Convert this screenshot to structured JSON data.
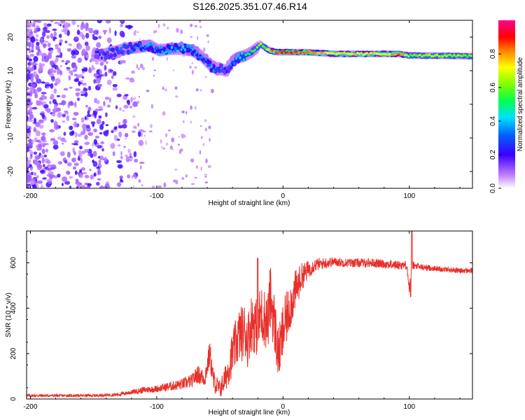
{
  "title": "S126.2025.351.07.46.R14",
  "chart_data": [
    {
      "type": "heatmap",
      "xlabel": "Height of straight line (km)",
      "ylabel": "Frequency (Hz)",
      "xlim": [
        -203,
        150
      ],
      "ylim": [
        -25,
        25
      ],
      "xticks": [
        -200,
        -100,
        0,
        100
      ],
      "yticks": [
        -20,
        -10,
        0,
        10,
        20
      ],
      "colorbar": {
        "label": "Normalized spectral amplitude",
        "range": [
          0,
          1
        ],
        "ticks": [
          "0.0",
          "0.2",
          "0.4",
          "0.6",
          "0.8"
        ]
      },
      "ridge_x": [
        -145,
        -135,
        -125,
        -115,
        -105,
        -98,
        -90,
        -80,
        -72,
        -65,
        -60,
        -55,
        -50,
        -45,
        -40,
        -35,
        -30,
        -25,
        -20,
        -18,
        -15,
        -10,
        -5,
        0,
        10,
        20,
        40,
        60,
        80,
        92,
        100,
        120,
        150
      ],
      "ridge_freq": [
        14.5,
        15.5,
        16.5,
        17.0,
        17.5,
        16.0,
        16.5,
        16.5,
        16.0,
        14.5,
        12.5,
        11.0,
        10.5,
        10.0,
        13.0,
        14.0,
        14.5,
        15.5,
        17.0,
        18.0,
        17.0,
        16.0,
        15.5,
        15.5,
        15.5,
        15.5,
        15.0,
        15.0,
        15.0,
        15.0,
        14.5,
        14.5,
        14.3
      ],
      "ridge_amplitude": [
        0.25,
        0.3,
        0.3,
        0.35,
        0.35,
        0.4,
        0.4,
        0.4,
        0.4,
        0.35,
        0.35,
        0.35,
        0.3,
        0.25,
        0.35,
        0.45,
        0.5,
        0.55,
        0.6,
        0.65,
        0.6,
        0.8,
        0.85,
        0.9,
        0.85,
        0.85,
        0.7,
        0.75,
        0.7,
        0.85,
        0.6,
        0.65,
        0.6
      ]
    },
    {
      "type": "line",
      "xlabel": "Height of straight line (km)",
      "ylabel": "SNR (10 * v/v)",
      "xlim": [
        -203,
        150
      ],
      "ylim": [
        0,
        740
      ],
      "xticks": [
        -200,
        -100,
        0,
        100
      ],
      "yticks": [
        0,
        200,
        400,
        600
      ],
      "color": "#e8302a",
      "series": [
        {
          "name": "SNR",
          "x": [
            -203,
            -180,
            -150,
            -130,
            -120,
            -110,
            -100,
            -90,
            -80,
            -72,
            -68,
            -62,
            -58,
            -55,
            -50,
            -45,
            -40,
            -35,
            -30,
            -28,
            -25,
            -22,
            -20,
            -18,
            -15,
            -12,
            -10,
            -8,
            -6,
            -4,
            -2,
            0,
            5,
            10,
            15,
            20,
            25,
            30,
            35,
            40,
            50,
            60,
            70,
            80,
            90,
            98,
            100,
            102,
            105,
            110,
            120,
            130,
            140,
            150
          ],
          "mean": [
            15,
            15,
            15,
            20,
            30,
            40,
            45,
            55,
            65,
            80,
            110,
            90,
            200,
            80,
            40,
            100,
            200,
            280,
            300,
            260,
            340,
            330,
            300,
            380,
            360,
            340,
            450,
            380,
            300,
            200,
            230,
            300,
            400,
            480,
            540,
            570,
            590,
            595,
            600,
            605,
            600,
            600,
            600,
            595,
            590,
            590,
            480,
            590,
            585,
            580,
            575,
            570,
            565,
            565
          ],
          "amplitude": [
            6,
            6,
            6,
            8,
            10,
            15,
            15,
            20,
            25,
            30,
            40,
            40,
            60,
            50,
            40,
            60,
            100,
            120,
            130,
            120,
            130,
            130,
            120,
            130,
            130,
            130,
            150,
            140,
            130,
            120,
            120,
            130,
            110,
            90,
            60,
            40,
            30,
            25,
            25,
            20,
            20,
            20,
            20,
            20,
            20,
            20,
            20,
            20,
            15,
            15,
            12,
            12,
            12,
            12
          ]
        }
      ],
      "annotations": [
        {
          "x": -20,
          "y": 620,
          "note": "spike"
        },
        {
          "x": 101,
          "y": 450,
          "note": "dip"
        },
        {
          "x": 102,
          "y": 740,
          "note": "spike"
        }
      ]
    }
  ]
}
